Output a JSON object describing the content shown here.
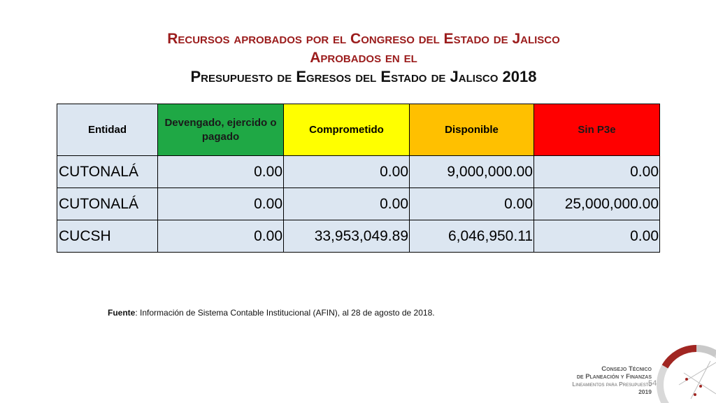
{
  "title": {
    "line1": "Recursos aprobados por el Congreso del Estado de Jalisco",
    "line2": "Aprobados en el",
    "line3": "Presupuesto de Egresos del Estado de Jalisco 2018"
  },
  "table": {
    "headers": [
      "Entidad",
      "Devengado, ejercido o pagado",
      "Comprometido",
      "Disponible",
      "Sin P3e"
    ],
    "header_colors": [
      "#dce6f1",
      "#1fa845",
      "#ffff00",
      "#ffc000",
      "#ff0000"
    ],
    "rows": [
      [
        "CUTONALÁ",
        "0.00",
        "0.00",
        "9,000,000.00",
        "0.00"
      ],
      [
        "CUTONALÁ",
        "0.00",
        "0.00",
        "0.00",
        "25,000,000.00"
      ],
      [
        "CUCSH",
        "0.00",
        "33,953,049.89",
        "6,046,950.11",
        "0.00"
      ]
    ]
  },
  "source": {
    "label": "Fuente",
    "text": ": Información de Sistema Contable Institucional (AFIN), al 28 de agosto de 2018."
  },
  "logo": {
    "line1": "Consejo Técnico",
    "line2": "de Planeación y Finanzas",
    "line3": "Lineamientos para Presupuesto",
    "line4": "2019"
  },
  "page_number": "54"
}
